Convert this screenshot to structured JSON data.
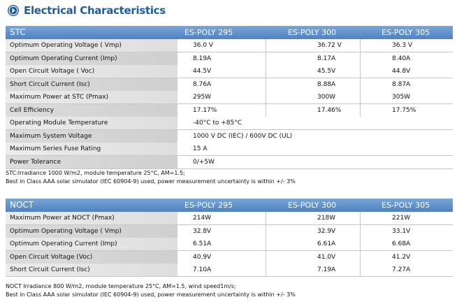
{
  "title": "Electrical Characteristics",
  "stc": {
    "header": "STC",
    "columns": [
      "ES-POLY 295",
      "ES-POLY 300",
      "ES-POLY 305"
    ],
    "rows": [
      {
        "label": "Optimum Operating Voltage ( Vmp)",
        "values": [
          "36.0 V",
          "36.72 V",
          "36.3 V"
        ]
      },
      {
        "label": "Optimum Operating Current (Imp)",
        "values": [
          "8.19A",
          "8.17A",
          "8.40A"
        ]
      },
      {
        "label": "Open Circuit Voltage ( Voc)",
        "values": [
          "44.5V",
          "45.5V",
          "44.8V"
        ]
      },
      {
        "label": "Short Circuit Current (Isc)",
        "values": [
          "8.76A",
          "8.88A",
          "8.87A"
        ]
      },
      {
        "label": "Maximum Power at STC (Pmax)",
        "values": [
          "295W",
          "300W",
          "305W"
        ]
      },
      {
        "label": "Cell Efficiency",
        "values": [
          "17.17%",
          "17.46%",
          "17.75%"
        ]
      },
      {
        "label": "Operating Module Temperature",
        "values": [
          "-40°C to +85°C"
        ]
      },
      {
        "label": "Maximum System Voltage",
        "values": [
          "1000 V DC (IEC) / 600V DC (UL)"
        ]
      },
      {
        "label": "Maximum Series Fuse Rating",
        "values": [
          "15 A"
        ]
      },
      {
        "label": "Power Tolerance",
        "values": [
          "0/+5W"
        ]
      }
    ],
    "notes": [
      "STC:Irradiance 1000 W/m2, module temperature 25°C, AM=1.5;",
      "Best in Class AAA solar simulator (IEC 60904-9) used, power measurement uncertainty is within +/- 3%"
    ]
  },
  "noct": {
    "header": "NOCT",
    "columns": [
      "ES-POLY 295",
      "ES-POLY 300",
      "ES-POLY 305"
    ],
    "rows": [
      {
        "label": "Maximum Power at NOCT (Pmax)",
        "values": [
          "214W",
          "218W",
          "221W"
        ]
      },
      {
        "label": "Optimum Operating Voltage ( Vmp)",
        "values": [
          "32.8V",
          "32.9V",
          "33.1V"
        ]
      },
      {
        "label": "Optimum Operating Current (Imp)",
        "values": [
          "6.51A",
          "6.61A",
          "6.68A"
        ]
      },
      {
        "label": "Open Circuit Voltage (Voc)",
        "values": [
          "40.9V",
          "41.0V",
          "41.2V"
        ]
      },
      {
        "label": "Short Circuit Current (Isc)",
        "values": [
          "7.10A",
          "7.19A",
          "7.27A"
        ]
      }
    ],
    "notes": [
      "NOCT Irradiance 800 W/m2, module temperature 25°C, AM=1.5, wind speed1m/s;",
      "Best in Class AAA solar simulator (IEC 60904-9) used, power measurement uncertainty is within +/- 3%"
    ]
  }
}
